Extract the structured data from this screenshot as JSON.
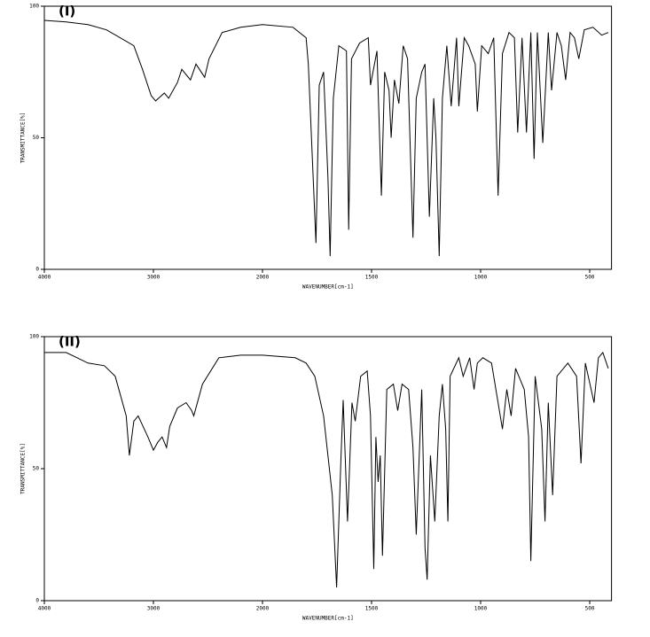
{
  "chart_data": [
    {
      "type": "line",
      "title": "(I)",
      "x_label": "WAVENUMBER[cm-1]",
      "y_label": "TRANSMITTANCE[%]",
      "xlim": [
        4000,
        400
      ],
      "ylim": [
        0,
        100
      ],
      "xticks": [
        4000,
        3000,
        2000,
        1500,
        1000,
        500
      ],
      "yticks": [
        0,
        50,
        100
      ],
      "x": [
        4000,
        3800,
        3600,
        3430,
        3180,
        3100,
        3020,
        2980,
        2900,
        2860,
        2780,
        2740,
        2660,
        2610,
        2530,
        2490,
        2370,
        2200,
        2000,
        1860,
        1800,
        1790,
        1755,
        1740,
        1720,
        1700,
        1690,
        1675,
        1650,
        1615,
        1605,
        1592,
        1555,
        1515,
        1505,
        1475,
        1455,
        1440,
        1420,
        1410,
        1395,
        1375,
        1355,
        1335,
        1310,
        1295,
        1270,
        1255,
        1235,
        1215,
        1205,
        1190,
        1175,
        1155,
        1135,
        1110,
        1100,
        1075,
        1055,
        1025,
        1015,
        995,
        965,
        940,
        920,
        900,
        870,
        845,
        830,
        810,
        790,
        770,
        755,
        740,
        715,
        690,
        675,
        650,
        630,
        610,
        590,
        570,
        550,
        525,
        485,
        445,
        415
      ],
      "series": [
        {
          "name": "(I)",
          "color": "#000000",
          "values": [
            94.6,
            94,
            93,
            91,
            85,
            76,
            66,
            64,
            67,
            65,
            71,
            76,
            72,
            78,
            73,
            80,
            90,
            92,
            93,
            92,
            88,
            78,
            10,
            70,
            75,
            35,
            5,
            65,
            85,
            83,
            15,
            80,
            86,
            88,
            70,
            83,
            28,
            75,
            68,
            50,
            72,
            63,
            85,
            80,
            12,
            65,
            75,
            78,
            20,
            65,
            50,
            5,
            65,
            85,
            62,
            88,
            62,
            88,
            85,
            78,
            60,
            85,
            82,
            88,
            28,
            82,
            90,
            88,
            52,
            88,
            52,
            90,
            42,
            90,
            48,
            90,
            68,
            90,
            85,
            72,
            90,
            88,
            80,
            91,
            92,
            89,
            90
          ]
        }
      ]
    },
    {
      "type": "line",
      "title": "(II)",
      "x_label": "WAVENUMBER[cm-1]",
      "y_label": "TRANSMITTANCE[%]",
      "xlim": [
        4000,
        400
      ],
      "ylim": [
        0,
        100
      ],
      "xticks": [
        4000,
        3000,
        2000,
        1500,
        1000,
        500
      ],
      "yticks": [
        0,
        50,
        100
      ],
      "x": [
        4000,
        3800,
        3700,
        3600,
        3450,
        3350,
        3250,
        3220,
        3180,
        3140,
        3050,
        3000,
        2960,
        2920,
        2880,
        2850,
        2780,
        2700,
        2650,
        2630,
        2550,
        2400,
        2200,
        2000,
        1850,
        1800,
        1760,
        1720,
        1680,
        1660,
        1640,
        1630,
        1610,
        1590,
        1575,
        1550,
        1520,
        1505,
        1490,
        1480,
        1470,
        1460,
        1450,
        1430,
        1400,
        1380,
        1360,
        1330,
        1310,
        1295,
        1270,
        1255,
        1245,
        1230,
        1210,
        1190,
        1175,
        1160,
        1150,
        1140,
        1100,
        1080,
        1050,
        1030,
        1015,
        990,
        950,
        930,
        900,
        880,
        860,
        840,
        800,
        780,
        770,
        750,
        720,
        705,
        690,
        670,
        650,
        600,
        560,
        540,
        520,
        480,
        460,
        440,
        415
      ],
      "series": [
        {
          "name": "(II)",
          "color": "#000000",
          "values": [
            94,
            94,
            92,
            90,
            89,
            85,
            70,
            55,
            68,
            70,
            62,
            57,
            60,
            62,
            58,
            66,
            73,
            75,
            72,
            70,
            82,
            92,
            93,
            93,
            92,
            90,
            85,
            70,
            40,
            5,
            55,
            76,
            30,
            75,
            68,
            85,
            87,
            70,
            12,
            62,
            45,
            55,
            17,
            80,
            82,
            72,
            82,
            80,
            58,
            25,
            80,
            20,
            8,
            55,
            30,
            70,
            82,
            65,
            30,
            85,
            92,
            85,
            92,
            80,
            90,
            92,
            90,
            80,
            65,
            80,
            70,
            88,
            80,
            62,
            15,
            85,
            65,
            30,
            75,
            40,
            85,
            90,
            85,
            52,
            90,
            75,
            92,
            94,
            88
          ]
        }
      ]
    }
  ]
}
